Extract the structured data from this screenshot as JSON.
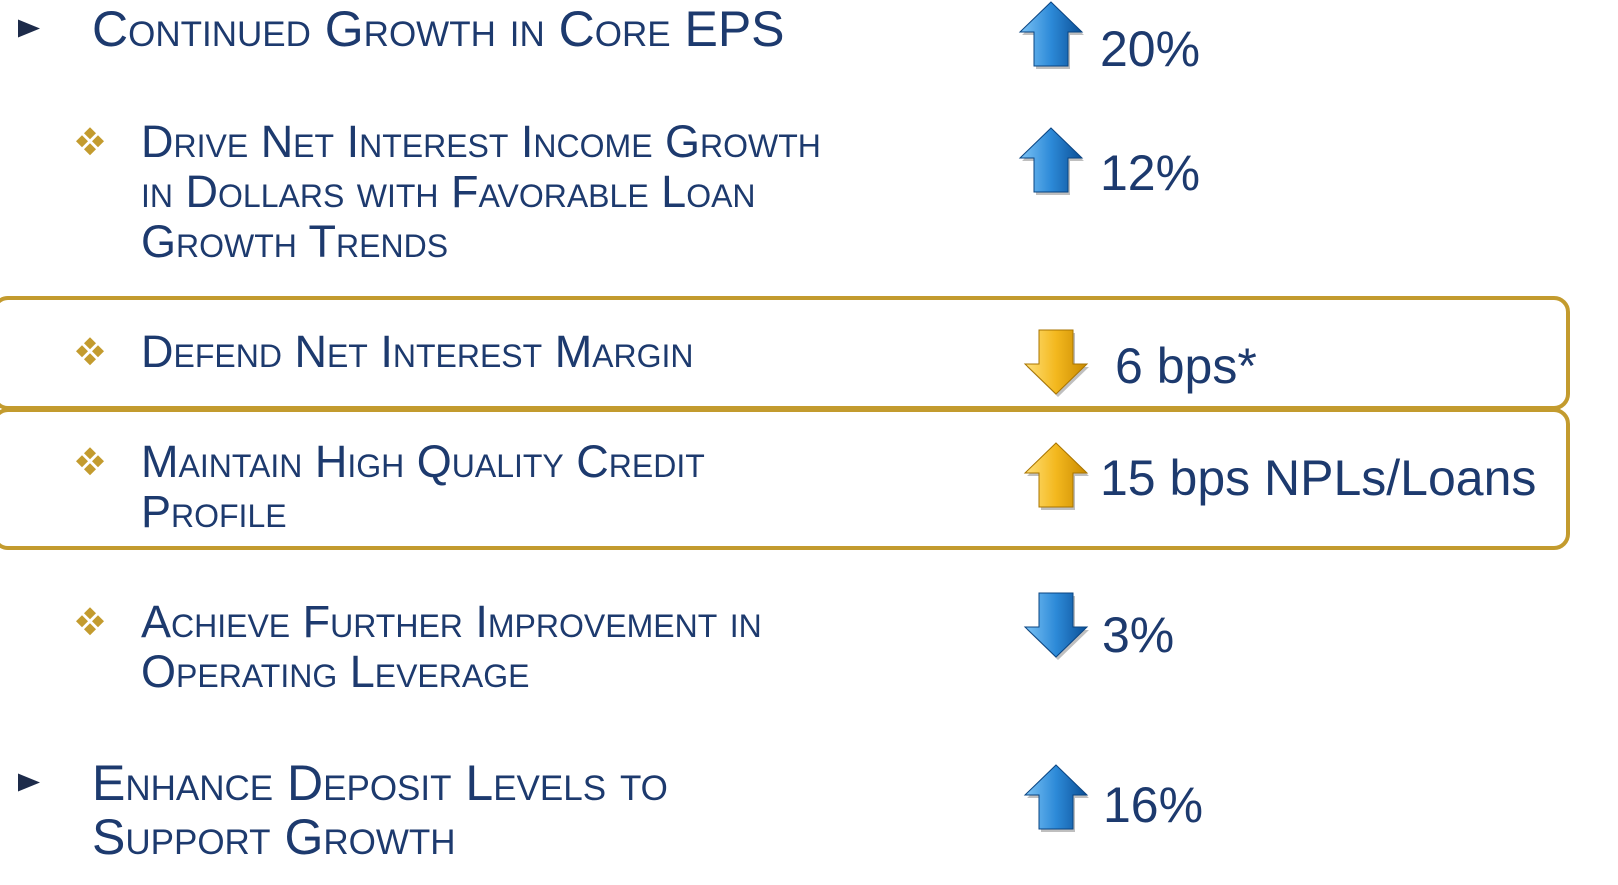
{
  "items": [
    {
      "level": 1,
      "lines": [
        "Continued Growth in Core EPS"
      ],
      "direction": "up",
      "color": "blue",
      "value": "20%"
    },
    {
      "level": 2,
      "lines": [
        "Drive Net Interest Income Growth",
        "in Dollars with Favorable Loan",
        "Growth Trends"
      ],
      "direction": "up",
      "color": "blue",
      "value": "12%"
    },
    {
      "level": 2,
      "lines": [
        "Defend Net Interest Margin"
      ],
      "direction": "down",
      "color": "gold",
      "value": "6 bps*",
      "boxed": true
    },
    {
      "level": 2,
      "lines": [
        "Maintain High Quality Credit",
        "Profile"
      ],
      "direction": "up",
      "color": "gold",
      "value": "15 bps NPLs/Loans",
      "boxed": true
    },
    {
      "level": 2,
      "lines": [
        "Achieve Further Improvement in",
        "Operating Leverage"
      ],
      "direction": "down",
      "color": "blue",
      "value": "3%"
    },
    {
      "level": 1,
      "lines": [
        "Enhance Deposit Levels to",
        "Support Growth"
      ],
      "direction": "up",
      "color": "blue",
      "value": "16%"
    }
  ]
}
